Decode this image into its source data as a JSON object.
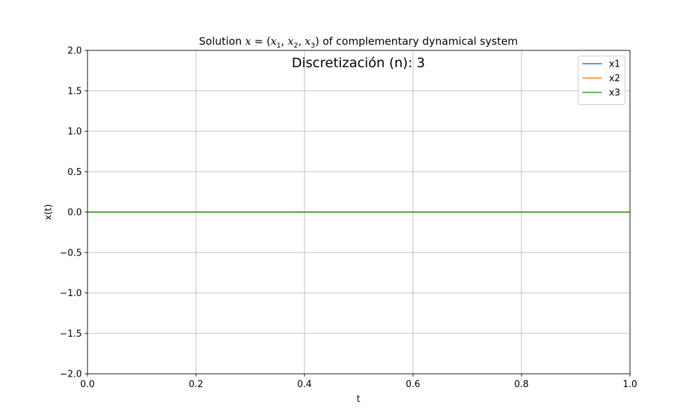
{
  "chart_data": {
    "type": "line",
    "title_prefix": "Solution ",
    "title_suffix": " of complementary dynamical system",
    "annotation": "Discretización (n): 3",
    "xlabel": "t",
    "ylabel": "x(t)",
    "xlim": [
      0.0,
      1.0
    ],
    "ylim": [
      -2.0,
      2.0
    ],
    "xticks": [
      0.0,
      0.2,
      0.4,
      0.6,
      0.8,
      1.0
    ],
    "xtick_labels": [
      "0.0",
      "0.2",
      "0.4",
      "0.6",
      "0.8",
      "1.0"
    ],
    "yticks": [
      -2.0,
      -1.5,
      -1.0,
      -0.5,
      0.0,
      0.5,
      1.0,
      1.5,
      2.0
    ],
    "ytick_labels": [
      "−2.0",
      "−1.5",
      "−1.0",
      "−0.5",
      "0.0",
      "0.5",
      "1.0",
      "1.5",
      "2.0"
    ],
    "grid": true,
    "legend_position": "top-right",
    "series": [
      {
        "name": "x1",
        "color": "#1f77b4",
        "x": [
          0.0,
          1.0
        ],
        "y": [
          0.0,
          0.0
        ]
      },
      {
        "name": "x2",
        "color": "#ff7f0e",
        "x": [
          0.0,
          1.0
        ],
        "y": [
          0.0,
          0.0
        ]
      },
      {
        "name": "x3",
        "color": "#2ca02c",
        "x": [
          0.0,
          1.0
        ],
        "y": [
          0.0,
          0.0
        ]
      }
    ]
  }
}
